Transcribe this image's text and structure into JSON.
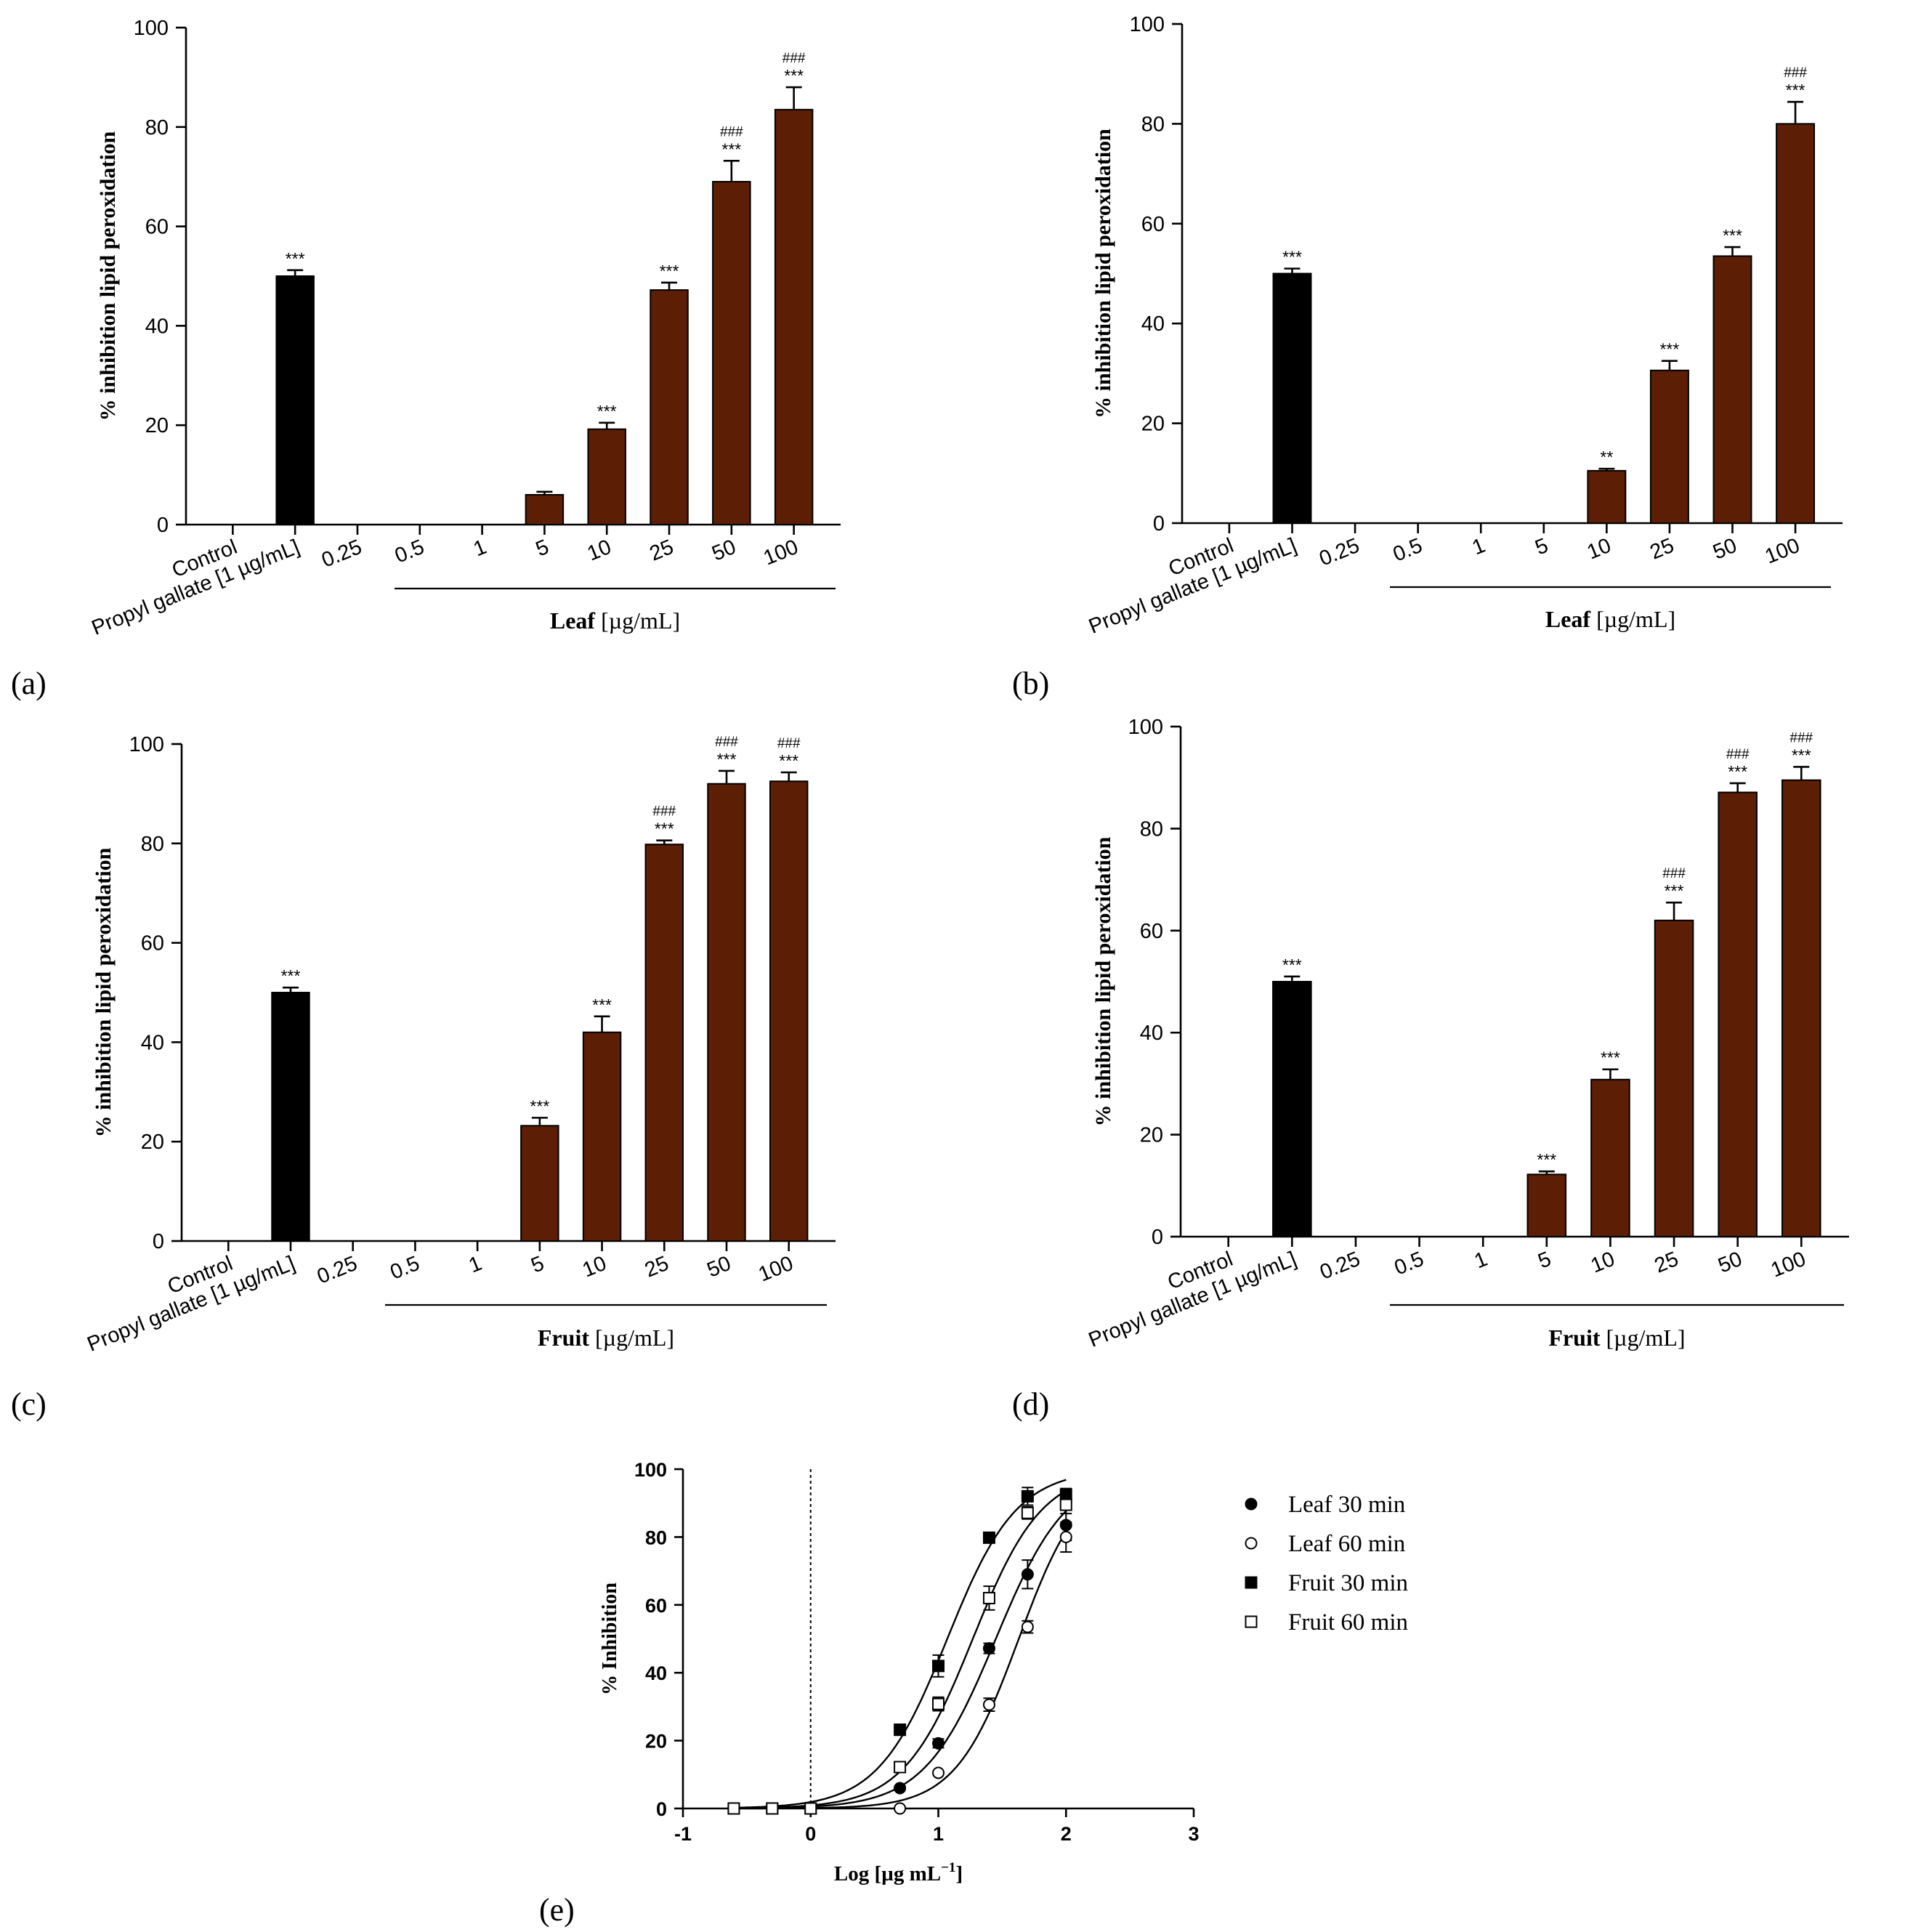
{
  "colors": {
    "bar_control": "#000000",
    "bar_extract": "#5c1e05",
    "line": "#000000"
  },
  "chart_data": [
    {
      "id": "a",
      "panel_label": "(a)",
      "type": "bar",
      "ylabel": "% inhibition lipid peroxidation",
      "ylim": [
        0,
        100
      ],
      "yticks": [
        0,
        20,
        40,
        60,
        80,
        100
      ],
      "categories": [
        "Control",
        "Propyl gallate [1 µg/mL]",
        "0.25",
        "0.5",
        "1",
        "5",
        "10",
        "25",
        "50",
        "100"
      ],
      "values": [
        0,
        50,
        0,
        0,
        0,
        6,
        19.2,
        47.2,
        69,
        83.5
      ],
      "errors": [
        0,
        1.2,
        0,
        0,
        0,
        0.6,
        1.3,
        1.5,
        4.2,
        4.5
      ],
      "annotations": [
        "",
        "***",
        "",
        "",
        "",
        "",
        "***",
        "***",
        "***",
        "***"
      ],
      "annotations2": [
        "",
        "",
        "",
        "",
        "",
        "",
        "",
        "",
        "###",
        "###"
      ],
      "group_label": "Leaf",
      "group_unit": "[µg/mL]"
    },
    {
      "id": "b",
      "panel_label": "(b)",
      "type": "bar",
      "ylabel": "% inhibition lipid peroxidation",
      "ylim": [
        0,
        100
      ],
      "yticks": [
        0,
        20,
        40,
        60,
        80,
        100
      ],
      "categories": [
        "Control",
        "Propyl gallate [1 µg/mL]",
        "0.25",
        "0.5",
        "1",
        "5",
        "10",
        "25",
        "50",
        "100"
      ],
      "values": [
        0,
        50,
        0,
        0,
        0,
        0,
        10.5,
        30.6,
        53.5,
        80
      ],
      "errors": [
        0,
        1,
        0,
        0,
        0,
        0,
        0.4,
        1.9,
        1.8,
        4.4
      ],
      "annotations": [
        "",
        "***",
        "",
        "",
        "",
        "",
        "**",
        "***",
        "***",
        "***"
      ],
      "annotations2": [
        "",
        "",
        "",
        "",
        "",
        "",
        "",
        "",
        "",
        "###"
      ],
      "group_label": "Leaf",
      "group_unit": "[µg/mL]"
    },
    {
      "id": "c",
      "panel_label": "(c)",
      "type": "bar",
      "ylabel": "% inhibition lipid peroxidation",
      "ylim": [
        0,
        100
      ],
      "yticks": [
        0,
        20,
        40,
        60,
        80,
        100
      ],
      "categories": [
        "Control",
        "Propyl gallate [1 µg/mL]",
        "0.25",
        "0.5",
        "1",
        "5",
        "10",
        "25",
        "50",
        "100"
      ],
      "values": [
        0,
        50,
        0,
        0,
        0,
        23.2,
        42,
        79.8,
        92,
        92.5
      ],
      "errors": [
        0,
        1,
        0,
        0,
        0,
        1.6,
        3.2,
        0.8,
        2.6,
        1.8
      ],
      "annotations": [
        "",
        "***",
        "",
        "",
        "",
        "***",
        "***",
        "***",
        "***",
        "***"
      ],
      "annotations2": [
        "",
        "",
        "",
        "",
        "",
        "",
        "",
        "###",
        "###",
        "###"
      ],
      "group_label": "Fruit",
      "group_unit": "[µg/mL]"
    },
    {
      "id": "d",
      "panel_label": "(d)",
      "type": "bar",
      "ylabel": "% inhibition lipid peroxidation",
      "ylim": [
        0,
        100
      ],
      "yticks": [
        0,
        20,
        40,
        60,
        80,
        100
      ],
      "categories": [
        "Control",
        "Propyl gallate [1 µg/mL]",
        "0.25",
        "0.5",
        "1",
        "5",
        "10",
        "25",
        "50",
        "100"
      ],
      "values": [
        0,
        50,
        0,
        0,
        0,
        12.2,
        30.8,
        62,
        87.1,
        89.5
      ],
      "errors": [
        0,
        1,
        0,
        0,
        0,
        0.6,
        2,
        3.5,
        1.8,
        2.6
      ],
      "annotations": [
        "",
        "***",
        "",
        "",
        "",
        "***",
        "***",
        "***",
        "***",
        "***"
      ],
      "annotations2": [
        "",
        "",
        "",
        "",
        "",
        "",
        "",
        "###",
        "###",
        "###"
      ],
      "group_label": "Fruit",
      "group_unit": "[µg/mL]"
    },
    {
      "id": "e",
      "panel_label": "(e)",
      "type": "scatter",
      "xlabel": "Log [µg mL",
      "xlabel_sup": "−1",
      "xlabel_end": "]",
      "ylabel": "% Inhibition",
      "xlim": [
        -1,
        3
      ],
      "ylim": [
        0,
        100
      ],
      "xticks": [
        -1,
        0,
        1,
        2,
        3
      ],
      "yticks": [
        0,
        20,
        40,
        60,
        80,
        100
      ],
      "x_ticklabels": [
        "-1",
        "0",
        "1",
        "2",
        "3"
      ],
      "vline_x": 0,
      "series": [
        {
          "name": "Leaf 30 min",
          "marker": "filled-circle",
          "x": [
            -0.602,
            -0.301,
            0,
            0.699,
            1,
            1.398,
            1.699,
            2
          ],
          "y": [
            0,
            0,
            0,
            6,
            19.2,
            47.2,
            69,
            83.5
          ],
          "err": [
            0,
            0,
            0,
            0.6,
            1.3,
            1.5,
            4.2,
            4.5
          ],
          "fit": {
            "bottom": 0,
            "top": 100,
            "logEC50": 1.45,
            "hill": 1.55
          }
        },
        {
          "name": "Leaf 60 min",
          "marker": "open-circle",
          "x": [
            -0.602,
            -0.301,
            0,
            0.699,
            1,
            1.398,
            1.699,
            2
          ],
          "y": [
            0,
            0,
            0,
            0,
            10.5,
            30.6,
            53.5,
            80
          ],
          "err": [
            0,
            0,
            0,
            0,
            0.4,
            1.9,
            1.8,
            4.4
          ],
          "fit": {
            "bottom": 0,
            "top": 100,
            "logEC50": 1.63,
            "hill": 1.75
          }
        },
        {
          "name": "Fruit 30 min",
          "marker": "filled-square",
          "x": [
            -0.602,
            -0.301,
            0,
            0.699,
            1,
            1.398,
            1.699,
            2
          ],
          "y": [
            0,
            0,
            0,
            23.2,
            42,
            79.8,
            92,
            92.5
          ],
          "err": [
            0,
            0,
            0,
            1.6,
            3.2,
            0.8,
            2.6,
            1.8
          ],
          "fit": {
            "bottom": 0,
            "top": 100,
            "logEC50": 1.07,
            "hill": 1.6
          }
        },
        {
          "name": "Fruit 60 min",
          "marker": "open-square",
          "x": [
            -0.602,
            -0.301,
            0,
            0.699,
            1,
            1.398,
            1.699,
            2
          ],
          "y": [
            0,
            0,
            0,
            12.2,
            30.8,
            62,
            87.1,
            89.5
          ],
          "err": [
            0,
            0,
            0,
            0.6,
            2,
            3.5,
            1.8,
            2.6
          ],
          "fit": {
            "bottom": 0,
            "top": 100,
            "logEC50": 1.27,
            "hill": 1.6
          }
        }
      ]
    }
  ]
}
